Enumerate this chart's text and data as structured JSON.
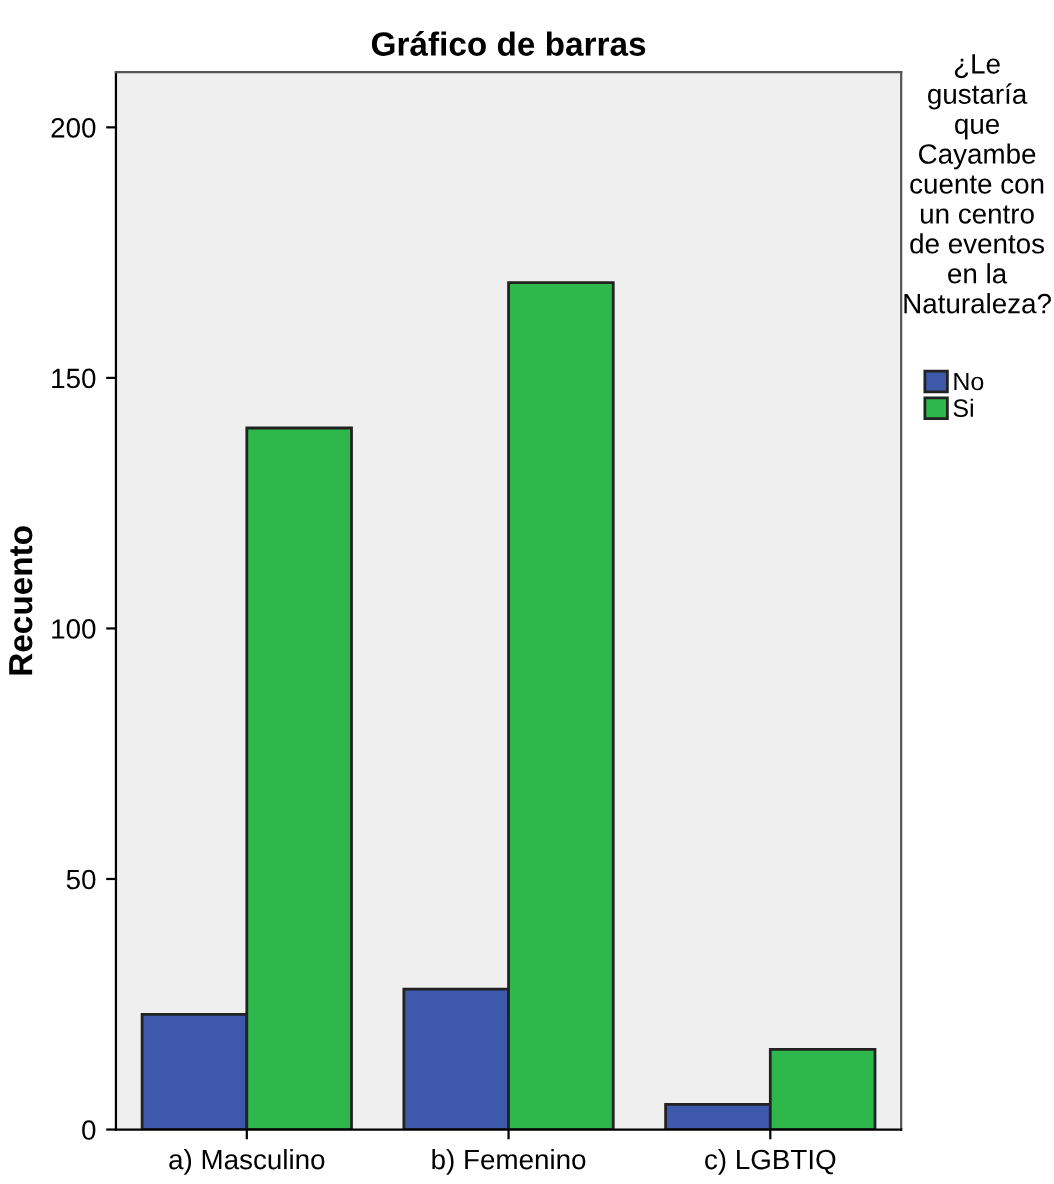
{
  "chart_data": {
    "type": "bar",
    "title": "Gráfico de barras",
    "ylabel": "Recuento",
    "legend_title": "¿Le gustaría que Cayambe cuente con un centro de eventos en la Naturaleza?",
    "categories": [
      "a) Masculino",
      "b) Femenino",
      "c) LGBTIQ"
    ],
    "series": [
      {
        "name": "No",
        "color": "#3e58ac",
        "values": [
          23,
          28,
          5
        ]
      },
      {
        "name": "Si",
        "color": "#2eb84b",
        "values": [
          140,
          169,
          16
        ]
      }
    ],
    "ylim": [
      0,
      211
    ],
    "yticks": [
      0,
      50,
      100,
      150,
      200
    ],
    "grid": false,
    "legend": "right"
  }
}
